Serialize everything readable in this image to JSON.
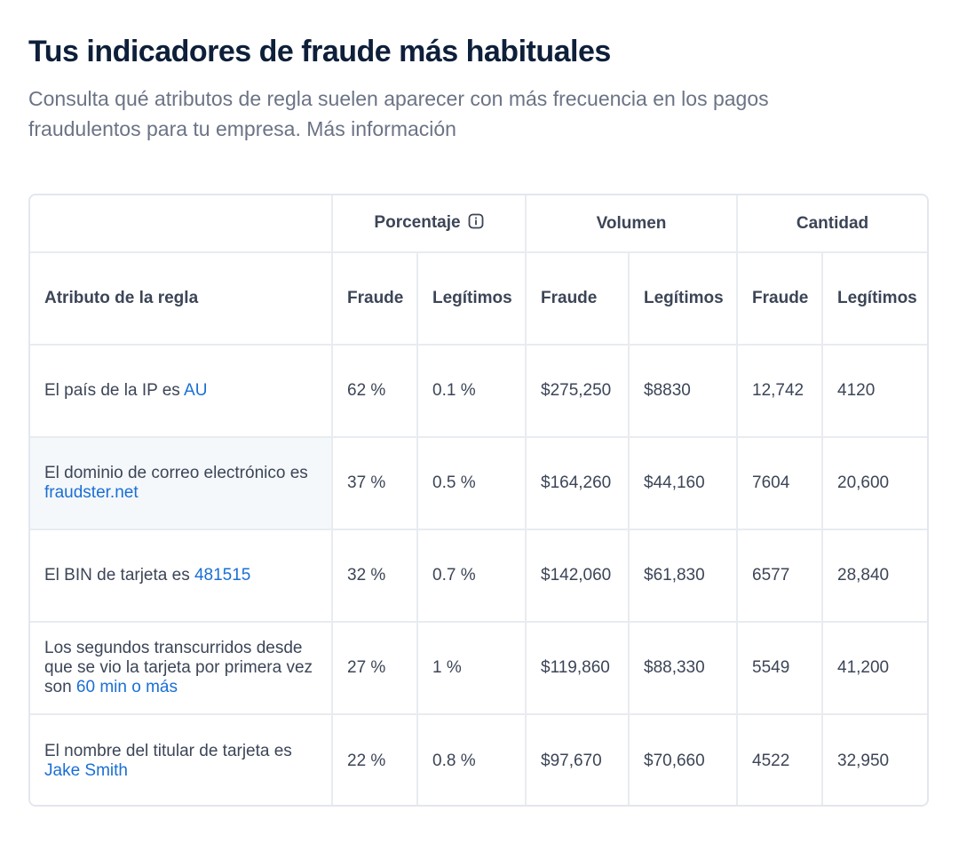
{
  "header": {
    "title": "Tus indicadores de fraude más habituales",
    "subtitle": "Consulta qué atributos de regla suelen aparecer con más frecuencia en los pagos fraudulentos para tu empresa.",
    "more_info_link": "Más información"
  },
  "table": {
    "group_headers": {
      "percentage": "Porcentaje",
      "volume": "Volumen",
      "count": "Cantidad"
    },
    "columns": {
      "attribute": "Atributo de la regla",
      "pct_fraud": "Fraude",
      "pct_legit": "Legítimos",
      "vol_fraud": "Fraude",
      "vol_legit": "Legítimos",
      "cnt_fraud": "Fraude",
      "cnt_legit": "Legítimos"
    },
    "rows": [
      {
        "attr_prefix": "El país de la IP es ",
        "attr_value": "AU",
        "pct_fraud": "62 %",
        "pct_legit": "0.1 %",
        "vol_fraud": "$275,250",
        "vol_legit": "$8830",
        "cnt_fraud": "12,742",
        "cnt_legit": "4120"
      },
      {
        "attr_prefix": "El dominio de correo electrónico es ",
        "attr_value": "fraudster.net",
        "pct_fraud": "37 %",
        "pct_legit": "0.5 %",
        "vol_fraud": "$164,260",
        "vol_legit": "$44,160",
        "cnt_fraud": "7604",
        "cnt_legit": "20,600"
      },
      {
        "attr_prefix": "El BIN de tarjeta es ",
        "attr_value": "481515",
        "pct_fraud": "32 %",
        "pct_legit": "0.7 %",
        "vol_fraud": "$142,060",
        "vol_legit": "$61,830",
        "cnt_fraud": "6577",
        "cnt_legit": "28,840"
      },
      {
        "attr_prefix": "Los segundos transcurridos desde que se vio la tarjeta por primera vez son ",
        "attr_value": "60 min o más",
        "pct_fraud": "27 %",
        "pct_legit": "1 %",
        "vol_fraud": "$119,860",
        "vol_legit": "$88,330",
        "cnt_fraud": "5549",
        "cnt_legit": "41,200"
      },
      {
        "attr_prefix": "El nombre del titular de tarjeta es ",
        "attr_value": "Jake Smith",
        "pct_fraud": "22 %",
        "pct_legit": "0.8 %",
        "vol_fraud": "$97,670",
        "vol_legit": "$70,660",
        "cnt_fraud": "4522",
        "cnt_legit": "32,950"
      }
    ]
  },
  "icons": {
    "percentage_info": "info-icon"
  },
  "colors": {
    "title": "#0e1f3a",
    "subtitle": "#6b7385",
    "link": "#1a6fd4",
    "border": "#e8ebf0",
    "highlight_row_bg": "#f5f8fb"
  }
}
